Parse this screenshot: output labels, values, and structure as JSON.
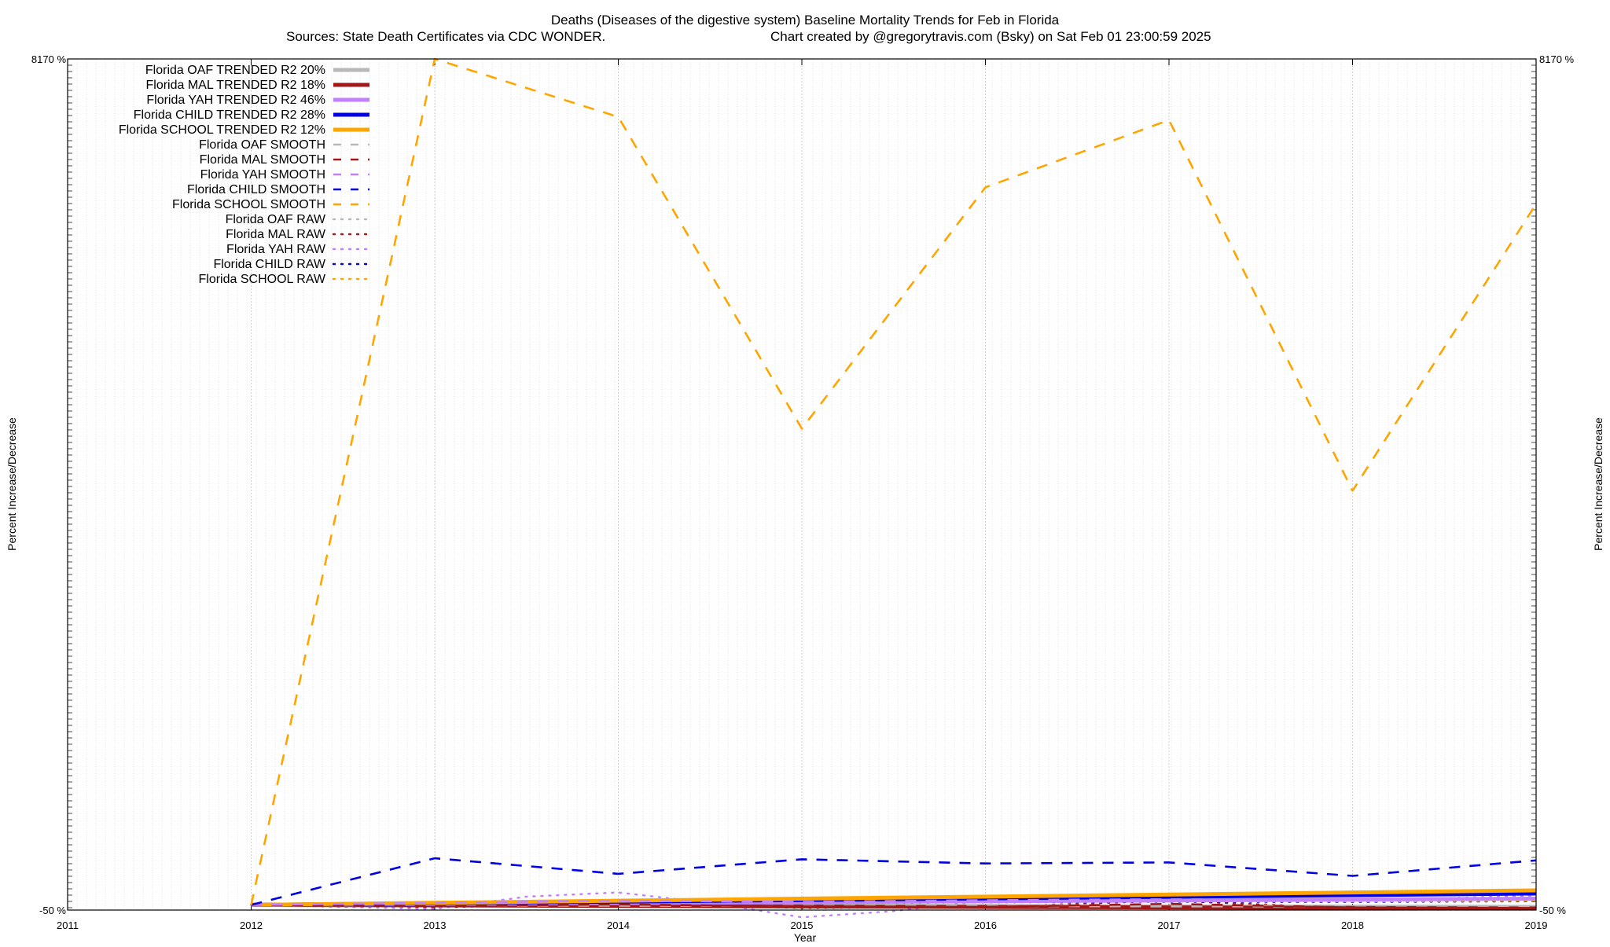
{
  "chart_data": {
    "type": "line",
    "title": "Deaths (Diseases of the digestive system)  Baseline Mortality Trends for Feb in Florida",
    "subtitle_left": "Sources: State Death Certificates via CDC WONDER.",
    "subtitle_right": "Chart created by @gregorytravis.com (Bsky) on Sat Feb 01 23:00:59 2025",
    "xlabel": "Year",
    "ylabel_left": "Percent Increase/Decrease",
    "ylabel_right": "Percent Increase/Decrease",
    "xlim": [
      2011,
      2019
    ],
    "ylim": [
      -50,
      8170
    ],
    "x_ticks": [
      "2011",
      "2012",
      "2013",
      "2014",
      "2015",
      "2016",
      "2017",
      "2018",
      "2019"
    ],
    "y_tick_first": "-50 %",
    "y_tick_last": "8170 %",
    "grid": true,
    "legend_position": "top-left",
    "series": [
      {
        "name": "Florida OAF TRENDED R2  20%",
        "style": "trend",
        "color": "#b8b8b8",
        "x": [
          2012,
          2019
        ],
        "y": [
          0,
          -20
        ]
      },
      {
        "name": "Florida MAL TRENDED R2  18%",
        "style": "trend",
        "color": "#a01818",
        "x": [
          2012,
          2019
        ],
        "y": [
          0,
          -35
        ]
      },
      {
        "name": "Florida YAH TRENDED R2  46%",
        "style": "trend",
        "color": "#c080ff",
        "x": [
          2012,
          2019
        ],
        "y": [
          0,
          60
        ]
      },
      {
        "name": "Florida CHILD TRENDED R2  28%",
        "style": "trend",
        "color": "#0000e0",
        "x": [
          2012,
          2019
        ],
        "y": [
          0,
          110
        ]
      },
      {
        "name": "Florida SCHOOL TRENDED R2  12%",
        "style": "trend",
        "color": "#ffa500",
        "x": [
          2012,
          2019
        ],
        "y": [
          0,
          140
        ]
      },
      {
        "name": "Florida OAF SMOOTH",
        "style": "smooth",
        "color": "#b8b8b8",
        "x": [
          2012,
          2013,
          2014,
          2015,
          2016,
          2017,
          2018,
          2019
        ],
        "y": [
          0,
          -5,
          -8,
          -10,
          -12,
          -14,
          -16,
          -18
        ]
      },
      {
        "name": "Florida MAL SMOOTH",
        "style": "smooth",
        "color": "#a01818",
        "x": [
          2012,
          2013,
          2014,
          2015,
          2016,
          2017,
          2018,
          2019
        ],
        "y": [
          0,
          -10,
          5,
          -15,
          -20,
          10,
          -25,
          -30
        ]
      },
      {
        "name": "Florida YAH SMOOTH",
        "style": "smooth",
        "color": "#c080ff",
        "x": [
          2012,
          2013,
          2014,
          2015,
          2016,
          2017,
          2018,
          2019
        ],
        "y": [
          0,
          20,
          40,
          30,
          45,
          55,
          50,
          65
        ]
      },
      {
        "name": "Florida CHILD SMOOTH",
        "style": "smooth",
        "color": "#0000e0",
        "x": [
          2012,
          2013,
          2014,
          2015,
          2016,
          2017,
          2018,
          2019
        ],
        "y": [
          0,
          450,
          300,
          440,
          400,
          410,
          280,
          430
        ]
      },
      {
        "name": "Florida SCHOOL SMOOTH",
        "style": "smooth",
        "color": "#ffa500",
        "x": [
          2012,
          2013,
          2014,
          2015,
          2016,
          2017,
          2018,
          2019
        ],
        "y": [
          0,
          8170,
          7610,
          4600,
          6930,
          7580,
          4000,
          6770
        ]
      },
      {
        "name": "Florida OAF RAW",
        "style": "raw",
        "color": "#b8b8b8",
        "x": [
          2012,
          2013,
          2014,
          2015,
          2016,
          2017,
          2018,
          2019
        ],
        "y": [
          0,
          -5,
          -10,
          -8,
          -12,
          -15,
          -14,
          -20
        ]
      },
      {
        "name": "Florida MAL RAW",
        "style": "raw",
        "color": "#a01818",
        "x": [
          2012,
          2013,
          2014,
          2015,
          2016,
          2017,
          2018,
          2019
        ],
        "y": [
          0,
          -25,
          20,
          -30,
          -20,
          40,
          -30,
          -25
        ]
      },
      {
        "name": "Florida YAH RAW",
        "style": "raw",
        "color": "#c080ff",
        "x": [
          2012,
          2012.5,
          2013,
          2013.5,
          2014,
          2014.5,
          2015,
          2015.5,
          2016,
          2017,
          2018,
          2019
        ],
        "y": [
          0,
          -20,
          -40,
          80,
          120,
          20,
          -120,
          -60,
          40,
          50,
          40,
          90
        ]
      },
      {
        "name": "Florida CHILD RAW",
        "style": "raw",
        "color": "#0000e0",
        "x": [
          2012,
          2013,
          2014,
          2015,
          2016,
          2017,
          2018,
          2019
        ],
        "y": [
          0,
          10,
          20,
          15,
          25,
          30,
          28,
          35
        ]
      },
      {
        "name": "Florida SCHOOL RAW",
        "style": "raw",
        "color": "#ffa500",
        "x": [
          2012,
          2013,
          2014,
          2015,
          2016,
          2017,
          2018,
          2019
        ],
        "y": [
          0,
          15,
          25,
          20,
          30,
          35,
          33,
          40
        ]
      }
    ]
  }
}
